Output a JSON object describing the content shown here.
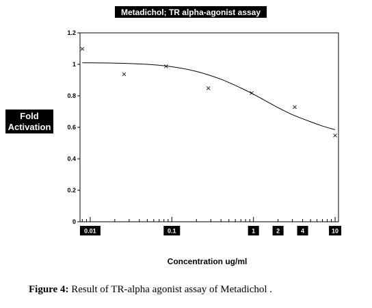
{
  "chart_data": {
    "type": "scatter",
    "title": "Metadichol; TR alpha-agonist assay",
    "ylabel_lines": [
      "Fold",
      "Activation"
    ],
    "xlabel": "Concentration ug/ml",
    "x_scale": "log",
    "xlim": [
      0.0075,
      11
    ],
    "ylim": [
      0,
      1.2
    ],
    "y_ticks": [
      0,
      0.2,
      0.4,
      0.6,
      0.8,
      1,
      1.2
    ],
    "y_tick_labels": [
      "0",
      "0.2",
      "0.4",
      "0.6",
      "0.8",
      "1",
      "1.2"
    ],
    "x_tick_labels": [
      {
        "value": 0.01,
        "label": "0.01"
      },
      {
        "value": 0.1,
        "label": "0.1"
      },
      {
        "value": 1,
        "label": "1"
      },
      {
        "value": 2,
        "label": "2"
      },
      {
        "value": 4,
        "label": "4"
      },
      {
        "value": 10,
        "label": "10"
      }
    ],
    "marker": "×",
    "points": [
      {
        "x": 0.008,
        "y": 1.1
      },
      {
        "x": 0.026,
        "y": 0.94
      },
      {
        "x": 0.085,
        "y": 0.99
      },
      {
        "x": 0.28,
        "y": 0.85
      },
      {
        "x": 0.95,
        "y": 0.82
      },
      {
        "x": 3.2,
        "y": 0.73
      },
      {
        "x": 10,
        "y": 0.55
      }
    ],
    "fit_curve": [
      {
        "x": 0.008,
        "y": 1.01
      },
      {
        "x": 0.02,
        "y": 1.008
      },
      {
        "x": 0.05,
        "y": 1.0
      },
      {
        "x": 0.1,
        "y": 0.985
      },
      {
        "x": 0.2,
        "y": 0.955
      },
      {
        "x": 0.4,
        "y": 0.905
      },
      {
        "x": 0.7,
        "y": 0.85
      },
      {
        "x": 1,
        "y": 0.81
      },
      {
        "x": 1.5,
        "y": 0.76
      },
      {
        "x": 2,
        "y": 0.725
      },
      {
        "x": 3,
        "y": 0.68
      },
      {
        "x": 5,
        "y": 0.635
      },
      {
        "x": 7,
        "y": 0.608
      },
      {
        "x": 10,
        "y": 0.585
      }
    ],
    "grid": false,
    "legend": "none"
  },
  "caption": {
    "label": "Figure 4:",
    "text": " Result of TR-alpha agonist assay of Metadichol ."
  }
}
